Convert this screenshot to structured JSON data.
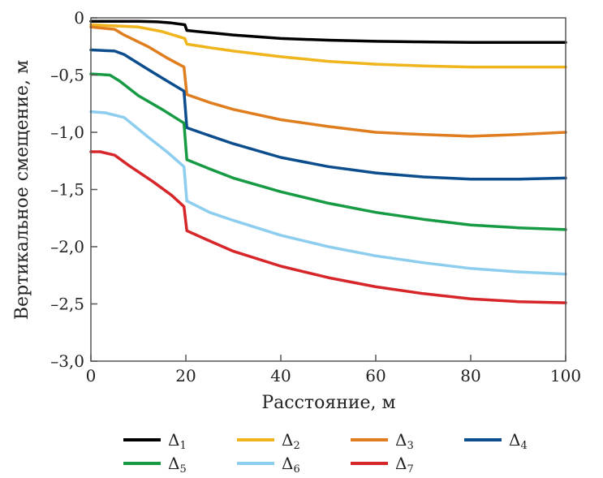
{
  "chart_data": {
    "type": "line",
    "xlabel": "Расстояние, м",
    "ylabel": "Вертикальное смещение, м",
    "xlim": [
      0,
      100
    ],
    "ylim": [
      -3.0,
      0
    ],
    "x_ticks": [
      0,
      20,
      40,
      60,
      80,
      100
    ],
    "y_ticks": [
      0,
      -0.5,
      -1.0,
      -1.5,
      -2.0,
      -2.5,
      -3.0
    ],
    "x_tick_labels": [
      "0",
      "20",
      "40",
      "60",
      "80",
      "100"
    ],
    "y_tick_labels": [
      "0",
      "–0,5",
      "–1,0",
      "–1,5",
      "–2,0",
      "–2,5",
      "–3,0"
    ],
    "grid": false,
    "legend_position": "bottom",
    "series": [
      {
        "name": "Δ",
        "subscript": "1",
        "color": "#000000",
        "points": [
          [
            0,
            -0.03
          ],
          [
            5,
            -0.03
          ],
          [
            10,
            -0.03
          ],
          [
            14,
            -0.035
          ],
          [
            17,
            -0.045
          ],
          [
            19.8,
            -0.06
          ],
          [
            20.2,
            -0.11
          ],
          [
            25,
            -0.13
          ],
          [
            30,
            -0.15
          ],
          [
            40,
            -0.18
          ],
          [
            50,
            -0.195
          ],
          [
            60,
            -0.205
          ],
          [
            70,
            -0.21
          ],
          [
            80,
            -0.215
          ],
          [
            90,
            -0.215
          ],
          [
            100,
            -0.215
          ]
        ]
      },
      {
        "name": "Δ",
        "subscript": "2",
        "color": "#f0b41c",
        "points": [
          [
            0,
            -0.06
          ],
          [
            5,
            -0.07
          ],
          [
            10,
            -0.08
          ],
          [
            15,
            -0.12
          ],
          [
            19.8,
            -0.18
          ],
          [
            20.2,
            -0.23
          ],
          [
            25,
            -0.26
          ],
          [
            30,
            -0.29
          ],
          [
            40,
            -0.34
          ],
          [
            50,
            -0.38
          ],
          [
            60,
            -0.405
          ],
          [
            70,
            -0.42
          ],
          [
            80,
            -0.43
          ],
          [
            90,
            -0.43
          ],
          [
            100,
            -0.43
          ]
        ]
      },
      {
        "name": "Δ",
        "subscript": "3",
        "color": "#e07d1e",
        "points": [
          [
            0,
            -0.08
          ],
          [
            5,
            -0.1
          ],
          [
            7,
            -0.15
          ],
          [
            12,
            -0.25
          ],
          [
            16,
            -0.35
          ],
          [
            19.6,
            -0.43
          ],
          [
            20.2,
            -0.67
          ],
          [
            25,
            -0.74
          ],
          [
            30,
            -0.8
          ],
          [
            40,
            -0.89
          ],
          [
            50,
            -0.95
          ],
          [
            60,
            -1.0
          ],
          [
            70,
            -1.02
          ],
          [
            80,
            -1.035
          ],
          [
            90,
            -1.02
          ],
          [
            100,
            -1.0
          ]
        ]
      },
      {
        "name": "Δ",
        "subscript": "4",
        "color": "#0c4d8d",
        "points": [
          [
            0,
            -0.28
          ],
          [
            5,
            -0.29
          ],
          [
            7,
            -0.32
          ],
          [
            12,
            -0.45
          ],
          [
            16,
            -0.55
          ],
          [
            19.6,
            -0.64
          ],
          [
            20.2,
            -0.96
          ],
          [
            25,
            -1.03
          ],
          [
            30,
            -1.1
          ],
          [
            40,
            -1.22
          ],
          [
            50,
            -1.3
          ],
          [
            60,
            -1.355
          ],
          [
            70,
            -1.39
          ],
          [
            80,
            -1.41
          ],
          [
            90,
            -1.41
          ],
          [
            100,
            -1.4
          ]
        ]
      },
      {
        "name": "Δ",
        "subscript": "5",
        "color": "#179a44",
        "points": [
          [
            0,
            -0.49
          ],
          [
            4,
            -0.5
          ],
          [
            6,
            -0.55
          ],
          [
            10,
            -0.68
          ],
          [
            15,
            -0.8
          ],
          [
            19.6,
            -0.92
          ],
          [
            20.2,
            -1.24
          ],
          [
            25,
            -1.32
          ],
          [
            30,
            -1.4
          ],
          [
            40,
            -1.52
          ],
          [
            50,
            -1.62
          ],
          [
            60,
            -1.7
          ],
          [
            70,
            -1.76
          ],
          [
            80,
            -1.81
          ],
          [
            90,
            -1.835
          ],
          [
            100,
            -1.85
          ]
        ]
      },
      {
        "name": "Δ",
        "subscript": "6",
        "color": "#8dcdee",
        "points": [
          [
            0,
            -0.82
          ],
          [
            3,
            -0.83
          ],
          [
            7,
            -0.87
          ],
          [
            12,
            -1.04
          ],
          [
            16,
            -1.17
          ],
          [
            19.6,
            -1.3
          ],
          [
            20.2,
            -1.6
          ],
          [
            25,
            -1.7
          ],
          [
            30,
            -1.77
          ],
          [
            40,
            -1.9
          ],
          [
            50,
            -2.0
          ],
          [
            60,
            -2.08
          ],
          [
            70,
            -2.14
          ],
          [
            80,
            -2.19
          ],
          [
            90,
            -2.22
          ],
          [
            100,
            -2.24
          ]
        ]
      },
      {
        "name": "Δ",
        "subscript": "7",
        "color": "#d7262a",
        "points": [
          [
            0,
            -1.17
          ],
          [
            2,
            -1.17
          ],
          [
            5,
            -1.2
          ],
          [
            8,
            -1.29
          ],
          [
            13,
            -1.43
          ],
          [
            17,
            -1.55
          ],
          [
            19.6,
            -1.65
          ],
          [
            20.2,
            -1.86
          ],
          [
            25,
            -1.95
          ],
          [
            30,
            -2.04
          ],
          [
            40,
            -2.17
          ],
          [
            50,
            -2.27
          ],
          [
            60,
            -2.35
          ],
          [
            70,
            -2.41
          ],
          [
            80,
            -2.455
          ],
          [
            90,
            -2.48
          ],
          [
            100,
            -2.49
          ]
        ]
      }
    ]
  }
}
